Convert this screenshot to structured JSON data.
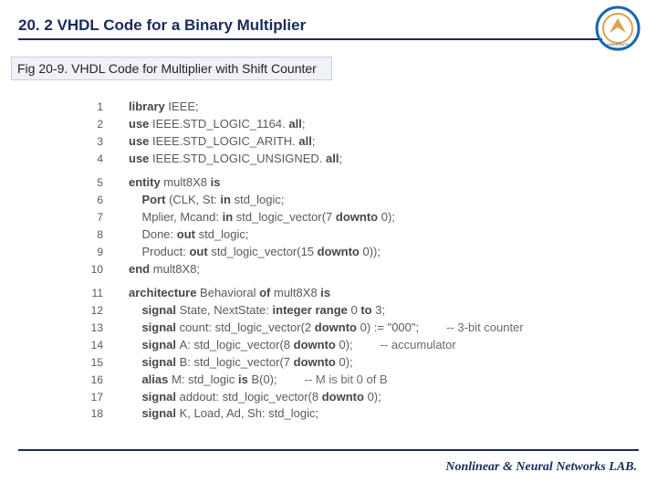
{
  "header": {
    "title": "20. 2 VHDL Code for a Binary Multiplier",
    "title_color": "#1a2a5c",
    "line_color": "#1a2a5c"
  },
  "logo": {
    "outer_color": "#1a66b0",
    "inner_color": "#d9a34a",
    "text_color": "#333333"
  },
  "caption": {
    "text": "Fig 20-9. VHDL Code for Multiplier with Shift Counter",
    "bg_color": "#f0f2f7",
    "border_color": "#c8cce0"
  },
  "code": {
    "text_color": "#5a5a5a",
    "keyword_color": "#474747",
    "font_size": 13,
    "lines": [
      {
        "n": 1,
        "tokens": [
          {
            "t": "library ",
            "k": true
          },
          {
            "t": "IEEE;"
          }
        ]
      },
      {
        "n": 2,
        "tokens": [
          {
            "t": "use ",
            "k": true
          },
          {
            "t": "IEEE.STD_LOGIC_1164. "
          },
          {
            "t": "all",
            "k": true
          },
          {
            "t": ";"
          }
        ]
      },
      {
        "n": 3,
        "tokens": [
          {
            "t": "use ",
            "k": true
          },
          {
            "t": "IEEE.STD_LOGIC_ARITH. "
          },
          {
            "t": "all",
            "k": true
          },
          {
            "t": ";"
          }
        ]
      },
      {
        "n": 4,
        "tokens": [
          {
            "t": "use ",
            "k": true
          },
          {
            "t": "IEEE.STD_LOGIC_UNSIGNED. "
          },
          {
            "t": "all",
            "k": true
          },
          {
            "t": ";"
          }
        ]
      },
      {
        "spacer": true
      },
      {
        "n": 5,
        "tokens": [
          {
            "t": "entity ",
            "k": true
          },
          {
            "t": "mult8X8 "
          },
          {
            "t": "is",
            "k": true
          }
        ]
      },
      {
        "n": 6,
        "tokens": [
          {
            "t": "    Port ",
            "k": true
          },
          {
            "t": "(CLK, St: "
          },
          {
            "t": "in ",
            "k": true
          },
          {
            "t": "std_logic;"
          }
        ]
      },
      {
        "n": 7,
        "tokens": [
          {
            "t": "    Mplier, Mcand: "
          },
          {
            "t": "in ",
            "k": true
          },
          {
            "t": "std_logic_vector(7 "
          },
          {
            "t": "downto ",
            "k": true
          },
          {
            "t": "0);"
          }
        ]
      },
      {
        "n": 8,
        "tokens": [
          {
            "t": "    Done: "
          },
          {
            "t": "out ",
            "k": true
          },
          {
            "t": "std_logic;"
          }
        ]
      },
      {
        "n": 9,
        "tokens": [
          {
            "t": "    Product: "
          },
          {
            "t": "out ",
            "k": true
          },
          {
            "t": "std_logic_vector(15 "
          },
          {
            "t": "downto ",
            "k": true
          },
          {
            "t": "0));"
          }
        ]
      },
      {
        "n": 10,
        "tokens": [
          {
            "t": "end ",
            "k": true
          },
          {
            "t": "mult8X8;"
          }
        ]
      },
      {
        "spacer": true
      },
      {
        "n": 11,
        "tokens": [
          {
            "t": "architecture ",
            "k": true
          },
          {
            "t": "Behavioral "
          },
          {
            "t": "of ",
            "k": true
          },
          {
            "t": "mult8X8 "
          },
          {
            "t": "is",
            "k": true
          }
        ]
      },
      {
        "n": 12,
        "tokens": [
          {
            "t": "    signal ",
            "k": true
          },
          {
            "t": "State, NextState: "
          },
          {
            "t": "integer range ",
            "k": true
          },
          {
            "t": "0 "
          },
          {
            "t": "to ",
            "k": true
          },
          {
            "t": "3;"
          }
        ]
      },
      {
        "n": 13,
        "tokens": [
          {
            "t": "    signal ",
            "k": true
          },
          {
            "t": "count: std_logic_vector(2 "
          },
          {
            "t": "downto ",
            "k": true
          },
          {
            "t": "0) := \"000\";"
          }
        ],
        "comment": "-- 3-bit counter"
      },
      {
        "n": 14,
        "tokens": [
          {
            "t": "    signal ",
            "k": true
          },
          {
            "t": "A: std_logic_vector(8 "
          },
          {
            "t": "downto ",
            "k": true
          },
          {
            "t": "0);"
          }
        ],
        "comment": "-- accumulator"
      },
      {
        "n": 15,
        "tokens": [
          {
            "t": "    signal ",
            "k": true
          },
          {
            "t": "B: std_logic_vector(7 "
          },
          {
            "t": "downto ",
            "k": true
          },
          {
            "t": "0);"
          }
        ]
      },
      {
        "n": 16,
        "tokens": [
          {
            "t": "    alias ",
            "k": true
          },
          {
            "t": "M: std_logic "
          },
          {
            "t": "is ",
            "k": true
          },
          {
            "t": "B(0);"
          }
        ],
        "comment": "-- M is bit 0 of B"
      },
      {
        "n": 17,
        "tokens": [
          {
            "t": "    signal ",
            "k": true
          },
          {
            "t": "addout: std_logic_vector(8 "
          },
          {
            "t": "downto ",
            "k": true
          },
          {
            "t": "0);"
          }
        ]
      },
      {
        "n": 18,
        "tokens": [
          {
            "t": "    signal ",
            "k": true
          },
          {
            "t": "K, Load, Ad, Sh: std_logic;"
          }
        ]
      }
    ]
  },
  "footer": {
    "text": "Nonlinear & Neural Networks LAB.",
    "color": "#1a2a5c"
  }
}
